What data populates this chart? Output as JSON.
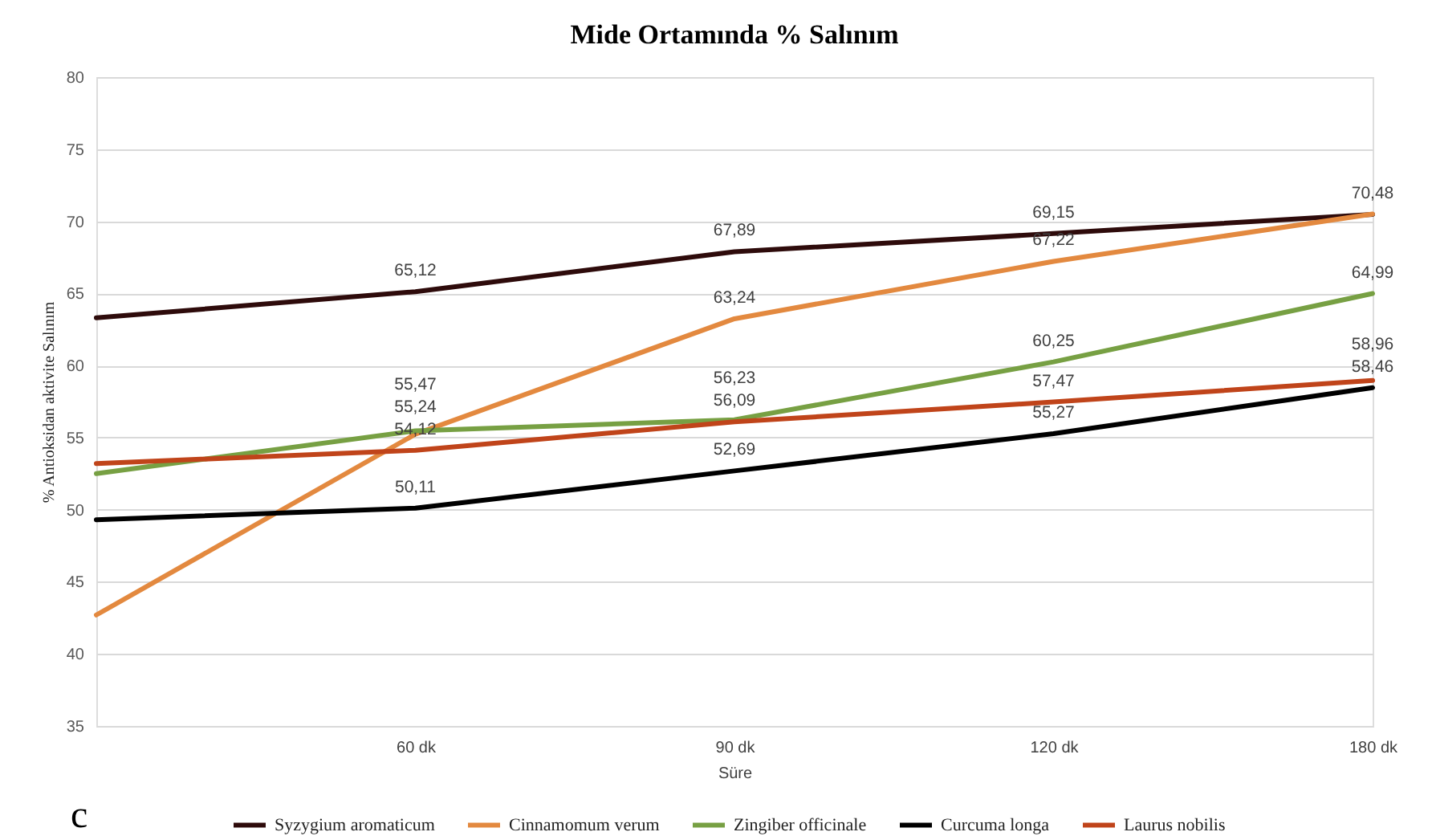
{
  "chart_data": {
    "type": "line",
    "title": "Mide Ortamında % Salınım",
    "xlabel": "Süre",
    "ylabel": "% Antioksidan aktivite Salınım",
    "categories": [
      null,
      "60 dk",
      "90 dk",
      "120 dk",
      "180 dk"
    ],
    "series": [
      {
        "name": "Syzygium aromaticum",
        "color": "#2e0b0b",
        "values": [
          63.3,
          65.12,
          67.89,
          69.15,
          70.48
        ],
        "value_labels": [
          null,
          "65,12",
          "67,89",
          "69,15",
          "70,48"
        ]
      },
      {
        "name": "Cinnamomum verum",
        "color": "#e3893f",
        "values": [
          42.7,
          55.24,
          63.24,
          67.22,
          70.5
        ],
        "value_labels": [
          null,
          "55,24",
          "63,24",
          "67,22",
          null
        ]
      },
      {
        "name": "Zingiber officinale",
        "color": "#77a043",
        "values": [
          52.5,
          55.47,
          56.23,
          60.25,
          64.99
        ],
        "value_labels": [
          null,
          "55,47",
          "56,23",
          "60,25",
          "64,99"
        ]
      },
      {
        "name": "Curcuma longa",
        "color": "#000000",
        "values": [
          49.3,
          50.11,
          52.69,
          55.27,
          58.46
        ],
        "value_labels": [
          null,
          "50,11",
          "52,69",
          "55,27",
          "58,46"
        ]
      },
      {
        "name": "Laurus nobilis",
        "color": "#c0441a",
        "values": [
          53.2,
          54.12,
          56.09,
          57.47,
          58.96
        ],
        "value_labels": [
          null,
          "54,12",
          "56,09",
          "57,47",
          "58,96"
        ]
      }
    ],
    "ylim": [
      35,
      80
    ],
    "yticks": [
      35,
      40,
      45,
      50,
      55,
      60,
      65,
      70,
      75,
      80
    ],
    "grid": "y",
    "legend": "bottom",
    "line_style": "solid",
    "annotations": [
      "c"
    ]
  }
}
